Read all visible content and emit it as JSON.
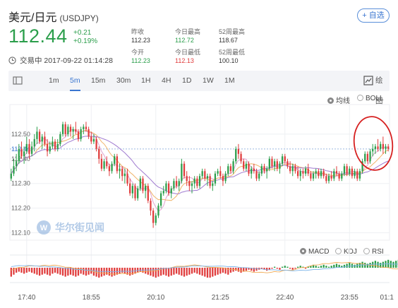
{
  "header": {
    "name": "美元/日元",
    "code": "(USDJPY)",
    "add_button": "+ 自选",
    "price": "112.44",
    "change_abs": "+0.21",
    "change_pct": "+0.19%",
    "status": "交易中 2017-09-22 01:14:28",
    "stats": [
      {
        "label": "昨收",
        "value": "112.23",
        "color": "black"
      },
      {
        "label": "今日最高",
        "value": "112.72",
        "color": "green"
      },
      {
        "label": "52周最高",
        "value": "118.67",
        "color": "black"
      },
      {
        "label": "今开",
        "value": "112.23",
        "color": "green"
      },
      {
        "label": "今日最低",
        "value": "112.13",
        "color": "red"
      },
      {
        "label": "52周最低",
        "value": "100.10",
        "color": "black"
      }
    ]
  },
  "toolbar": {
    "periods": [
      "1m",
      "5m",
      "15m",
      "30m",
      "1H",
      "4H",
      "1D",
      "1W",
      "1M"
    ],
    "active": "5m",
    "draw_label": "绘图"
  },
  "main_options": {
    "ma": "均线",
    "boll": "BOLL"
  },
  "sub_options": {
    "macd": "MACD",
    "kdj": "KDJ",
    "rsi": "RSI"
  },
  "watermark": "华尔街见闻",
  "colors": {
    "up": "#2b9e4b",
    "down": "#e03c3c",
    "accent": "#3a76d0",
    "annotation": "#d62020"
  },
  "chart_data": {
    "type": "candlestick",
    "title": "",
    "xlabel": "",
    "ylabel": "",
    "y_ticks": [
      "112.50",
      "112.40",
      "112.30",
      "112.20",
      "112.10"
    ],
    "y_ticks_values": [
      112.5,
      112.4,
      112.3,
      112.2,
      112.1
    ],
    "ylim": [
      112.07,
      112.62
    ],
    "current_price_label": "112.44",
    "current_price": 112.44,
    "x_ticks": [
      "17:40",
      "18:55",
      "20:10",
      "21:25",
      "22:40",
      "23:55",
      "01:1"
    ],
    "x_tick_index": [
      6,
      31,
      56,
      81,
      106,
      131,
      152
    ],
    "grid": true,
    "candles_ohlc": [
      [
        112.32,
        112.36,
        112.31,
        112.34
      ],
      [
        112.34,
        112.4,
        112.33,
        112.37
      ],
      [
        112.37,
        112.42,
        112.35,
        112.39
      ],
      [
        112.39,
        112.46,
        112.38,
        112.44
      ],
      [
        112.44,
        112.47,
        112.4,
        112.41
      ],
      [
        112.41,
        112.45,
        112.38,
        112.43
      ],
      [
        112.43,
        112.49,
        112.42,
        112.46
      ],
      [
        112.46,
        112.48,
        112.4,
        112.42
      ],
      [
        112.42,
        112.47,
        112.41,
        112.45
      ],
      [
        112.45,
        112.5,
        112.43,
        112.48
      ],
      [
        112.48,
        112.53,
        112.46,
        112.51
      ],
      [
        112.51,
        112.52,
        112.46,
        112.47
      ],
      [
        112.47,
        112.5,
        112.44,
        112.49
      ],
      [
        112.49,
        112.51,
        112.45,
        112.46
      ],
      [
        112.46,
        112.48,
        112.41,
        112.43
      ],
      [
        112.43,
        112.47,
        112.42,
        112.45
      ],
      [
        112.45,
        112.49,
        112.44,
        112.47
      ],
      [
        112.47,
        112.48,
        112.43,
        112.44
      ],
      [
        112.44,
        112.48,
        112.43,
        112.46
      ],
      [
        112.46,
        112.51,
        112.45,
        112.5
      ],
      [
        112.5,
        112.55,
        112.49,
        112.54
      ],
      [
        112.54,
        112.55,
        112.49,
        112.5
      ],
      [
        112.5,
        112.54,
        112.49,
        112.53
      ],
      [
        112.53,
        112.54,
        112.49,
        112.51
      ],
      [
        112.51,
        112.53,
        112.48,
        112.52
      ],
      [
        112.52,
        112.55,
        112.5,
        112.51
      ],
      [
        112.51,
        112.52,
        112.47,
        112.48
      ],
      [
        112.48,
        112.53,
        112.47,
        112.52
      ],
      [
        112.52,
        112.54,
        112.5,
        112.53
      ],
      [
        112.53,
        112.55,
        112.51,
        112.52
      ],
      [
        112.52,
        112.53,
        112.48,
        112.49
      ],
      [
        112.49,
        112.51,
        112.46,
        112.47
      ],
      [
        112.47,
        112.5,
        112.46,
        112.48
      ],
      [
        112.48,
        112.49,
        112.43,
        112.44
      ],
      [
        112.44,
        112.45,
        112.38,
        112.4
      ],
      [
        112.4,
        112.42,
        112.35,
        112.36
      ],
      [
        112.36,
        112.4,
        112.35,
        112.39
      ],
      [
        112.39,
        112.41,
        112.36,
        112.37
      ],
      [
        112.37,
        112.38,
        112.33,
        112.35
      ],
      [
        112.35,
        112.39,
        112.34,
        112.38
      ],
      [
        112.38,
        112.42,
        112.37,
        112.41
      ],
      [
        112.41,
        112.42,
        112.34,
        112.35
      ],
      [
        112.35,
        112.38,
        112.32,
        112.36
      ],
      [
        112.36,
        112.37,
        112.31,
        112.33
      ],
      [
        112.33,
        112.36,
        112.3,
        112.34
      ],
      [
        112.34,
        112.36,
        112.29,
        112.3
      ],
      [
        112.3,
        112.32,
        112.25,
        112.26
      ],
      [
        112.26,
        112.3,
        112.24,
        112.29
      ],
      [
        112.29,
        112.3,
        112.23,
        112.24
      ],
      [
        112.24,
        112.29,
        112.23,
        112.28
      ],
      [
        112.28,
        112.33,
        112.27,
        112.32
      ],
      [
        112.32,
        112.33,
        112.26,
        112.27
      ],
      [
        112.27,
        112.3,
        112.24,
        112.29
      ],
      [
        112.29,
        112.3,
        112.22,
        112.23
      ],
      [
        112.23,
        112.24,
        112.17,
        112.19
      ],
      [
        112.19,
        112.2,
        112.12,
        112.14
      ],
      [
        112.14,
        112.18,
        112.13,
        112.17
      ],
      [
        112.17,
        112.22,
        112.16,
        112.21
      ],
      [
        112.21,
        112.27,
        112.2,
        112.26
      ],
      [
        112.26,
        112.29,
        112.25,
        112.27
      ],
      [
        112.27,
        112.31,
        112.26,
        112.3
      ],
      [
        112.3,
        112.31,
        112.25,
        112.26
      ],
      [
        112.26,
        112.29,
        112.24,
        112.28
      ],
      [
        112.28,
        112.32,
        112.27,
        112.31
      ],
      [
        112.31,
        112.33,
        112.28,
        112.29
      ],
      [
        112.29,
        112.32,
        112.27,
        112.31
      ],
      [
        112.31,
        112.4,
        112.3,
        112.38
      ],
      [
        112.38,
        112.39,
        112.32,
        112.33
      ],
      [
        112.33,
        112.35,
        112.29,
        112.31
      ],
      [
        112.31,
        112.33,
        112.27,
        112.29
      ],
      [
        112.29,
        112.31,
        112.26,
        112.3
      ],
      [
        112.3,
        112.33,
        112.28,
        112.32
      ],
      [
        112.32,
        112.33,
        112.28,
        112.29
      ],
      [
        112.29,
        112.34,
        112.28,
        112.33
      ],
      [
        112.33,
        112.36,
        112.32,
        112.35
      ],
      [
        112.35,
        112.36,
        112.31,
        112.32
      ],
      [
        112.32,
        112.34,
        112.29,
        112.33
      ],
      [
        112.33,
        112.34,
        112.28,
        112.29
      ],
      [
        112.29,
        112.31,
        112.27,
        112.3
      ],
      [
        112.3,
        112.35,
        112.29,
        112.34
      ],
      [
        112.34,
        112.36,
        112.33,
        112.35
      ],
      [
        112.35,
        112.37,
        112.32,
        112.33
      ],
      [
        112.33,
        112.34,
        112.29,
        112.31
      ],
      [
        112.31,
        112.35,
        112.3,
        112.34
      ],
      [
        112.34,
        112.38,
        112.33,
        112.37
      ],
      [
        112.37,
        112.38,
        112.34,
        112.35
      ],
      [
        112.35,
        112.4,
        112.34,
        112.39
      ],
      [
        112.39,
        112.45,
        112.38,
        112.44
      ],
      [
        112.44,
        112.46,
        112.4,
        112.42
      ],
      [
        112.42,
        112.43,
        112.38,
        112.39
      ],
      [
        112.39,
        112.4,
        112.35,
        112.36
      ],
      [
        112.36,
        112.39,
        112.35,
        112.38
      ],
      [
        112.38,
        112.39,
        112.33,
        112.34
      ],
      [
        112.34,
        112.37,
        112.32,
        112.36
      ],
      [
        112.36,
        112.38,
        112.34,
        112.35
      ],
      [
        112.35,
        112.36,
        112.31,
        112.32
      ],
      [
        112.32,
        112.35,
        112.31,
        112.34
      ],
      [
        112.34,
        112.38,
        112.33,
        112.37
      ],
      [
        112.37,
        112.38,
        112.34,
        112.35
      ],
      [
        112.35,
        112.37,
        112.32,
        112.36
      ],
      [
        112.36,
        112.41,
        112.35,
        112.4
      ],
      [
        112.4,
        112.41,
        112.36,
        112.37
      ],
      [
        112.37,
        112.4,
        112.35,
        112.39
      ],
      [
        112.39,
        112.4,
        112.35,
        112.36
      ],
      [
        112.36,
        112.39,
        112.34,
        112.38
      ],
      [
        112.38,
        112.42,
        112.37,
        112.41
      ],
      [
        112.41,
        112.42,
        112.38,
        112.39
      ],
      [
        112.39,
        112.4,
        112.36,
        112.37
      ],
      [
        112.37,
        112.39,
        112.34,
        112.35
      ],
      [
        112.35,
        112.38,
        112.33,
        112.37
      ],
      [
        112.37,
        112.38,
        112.34,
        112.35
      ],
      [
        112.35,
        112.37,
        112.32,
        112.33
      ],
      [
        112.33,
        112.36,
        112.31,
        112.35
      ],
      [
        112.35,
        112.36,
        112.32,
        112.34
      ],
      [
        112.34,
        112.37,
        112.33,
        112.36
      ],
      [
        112.36,
        112.38,
        112.33,
        112.34
      ],
      [
        112.34,
        112.35,
        112.31,
        112.32
      ],
      [
        112.32,
        112.35,
        112.31,
        112.34
      ],
      [
        112.34,
        112.36,
        112.32,
        112.35
      ],
      [
        112.35,
        112.36,
        112.32,
        112.33
      ],
      [
        112.33,
        112.36,
        112.32,
        112.35
      ],
      [
        112.35,
        112.36,
        112.32,
        112.33
      ],
      [
        112.33,
        112.34,
        112.3,
        112.31
      ],
      [
        112.31,
        112.34,
        112.3,
        112.33
      ],
      [
        112.33,
        112.35,
        112.31,
        112.32
      ],
      [
        112.32,
        112.36,
        112.31,
        112.35
      ],
      [
        112.35,
        112.37,
        112.33,
        112.34
      ],
      [
        112.34,
        112.35,
        112.31,
        112.32
      ],
      [
        112.32,
        112.35,
        112.31,
        112.34
      ],
      [
        112.34,
        112.38,
        112.33,
        112.37
      ],
      [
        112.37,
        112.38,
        112.33,
        112.34
      ],
      [
        112.34,
        112.37,
        112.33,
        112.36
      ],
      [
        112.36,
        112.37,
        112.32,
        112.33
      ],
      [
        112.33,
        112.36,
        112.32,
        112.35
      ],
      [
        112.35,
        112.36,
        112.31,
        112.32
      ],
      [
        112.32,
        112.36,
        112.31,
        112.35
      ],
      [
        112.35,
        112.4,
        112.34,
        112.39
      ],
      [
        112.39,
        112.43,
        112.38,
        112.42
      ],
      [
        112.42,
        112.43,
        112.38,
        112.39
      ],
      [
        112.39,
        112.44,
        112.38,
        112.43
      ],
      [
        112.43,
        112.46,
        112.41,
        112.44
      ],
      [
        112.44,
        112.46,
        112.42,
        112.45
      ],
      [
        112.45,
        112.48,
        112.43,
        112.44
      ],
      [
        112.44,
        112.47,
        112.43,
        112.46
      ],
      [
        112.46,
        112.49,
        112.42,
        112.44
      ],
      [
        112.44,
        112.46,
        112.42,
        112.45
      ],
      [
        112.45,
        112.46,
        112.43,
        112.44
      ]
    ],
    "macd_hist": [
      -0.9,
      -0.7,
      -0.5,
      -0.4,
      -0.5,
      -0.6,
      -0.5,
      -0.4,
      -0.5,
      -0.6,
      -0.7,
      -0.8,
      -0.7,
      -0.6,
      -0.7,
      -0.8,
      -0.6,
      -0.5,
      -0.6,
      -0.7,
      -0.8,
      -0.9,
      -0.8,
      -0.7,
      -0.8,
      -0.9,
      -0.8,
      -0.6,
      -0.7,
      -0.8,
      -0.7,
      -0.6,
      -0.8,
      -0.9,
      -1.0,
      -0.9,
      -0.8,
      -0.7,
      -0.8,
      -0.9,
      -0.8,
      -0.7,
      -0.6,
      -0.5,
      -0.6,
      -0.7,
      -0.8,
      -0.7,
      -0.6,
      -0.5,
      -0.4,
      -0.5,
      -0.6,
      -0.7,
      -0.8,
      -0.9,
      -1.0,
      -0.9,
      -0.8,
      -0.7,
      -0.8,
      -0.9,
      -0.8,
      -0.7,
      -0.6,
      -0.7,
      -0.8,
      -0.9,
      -0.8,
      -0.7,
      -0.6,
      -0.5,
      -0.6,
      -0.7,
      -0.8,
      -0.9,
      -1.0,
      -1.0,
      -0.9,
      -0.8,
      -0.7,
      -0.6,
      -0.5,
      -0.6,
      -0.7,
      -0.5,
      -0.4,
      -0.3,
      -0.4,
      -0.5,
      -0.4,
      -0.3,
      -0.2,
      -0.3,
      -0.4,
      -0.3,
      -0.2,
      -0.1,
      -0.2,
      -0.3,
      -0.2,
      -0.1,
      0.1,
      -0.1,
      -0.2,
      0.1,
      0.2,
      0.1,
      -0.1,
      -0.2,
      -0.1,
      0.1,
      0.2,
      0.1,
      -0.1,
      0.1,
      0.2,
      0.3,
      0.2,
      0.1,
      0.2,
      0.3,
      0.2,
      0.1,
      0.2,
      0.3,
      0.4,
      0.3,
      0.2,
      0.3,
      0.4,
      0.5,
      0.4,
      0.3,
      0.4,
      0.5,
      0.6,
      0.5,
      0.4,
      0.5,
      0.6,
      0.7,
      0.6,
      0.5,
      0.6,
      0.7,
      0.8,
      0.7,
      0.6,
      0.7,
      0.8,
      0.7,
      0.6
    ]
  }
}
